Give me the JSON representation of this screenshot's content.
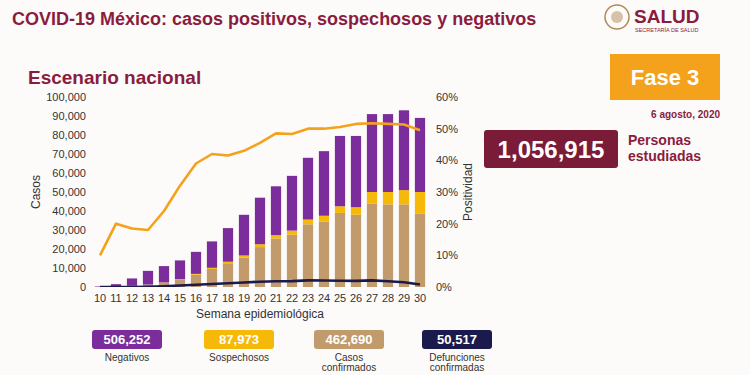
{
  "header": {
    "logo": "SALUD",
    "logo_subtitle": "SECRETARÍA DE SALUD",
    "phase": "Fase 3",
    "date": "6 agosto, 2020",
    "people_studied": "1,056,915",
    "people_studied_label": "Personas estudiadas"
  },
  "chart_data": {
    "type": "bar",
    "stacked": true,
    "title": "COVID-19 México: casos positivos, sospechosos y negativos",
    "subtitle": "Escenario nacional",
    "x_label": "Semana epidemiológica",
    "y_label": "Casos",
    "y2_label": "Positividad",
    "categories": [
      "10",
      "11",
      "12",
      "13",
      "14",
      "15",
      "16",
      "17",
      "18",
      "19",
      "20",
      "21",
      "22",
      "23",
      "24",
      "25",
      "26",
      "27",
      "28",
      "29",
      "30"
    ],
    "ylim": [
      0,
      100000
    ],
    "yticks": [
      0,
      {
        "value": 10000,
        "label": "10,000"
      },
      {
        "value": 20000,
        "label": "20,000"
      },
      {
        "value": 30000,
        "label": "30,000"
      },
      {
        "value": 40000,
        "label": "40,000"
      },
      {
        "value": 50000,
        "label": "50,000"
      },
      {
        "value": 60000,
        "label": "60,000"
      },
      {
        "value": 70000,
        "label": "70,000"
      },
      {
        "value": 80000,
        "label": "80,000"
      },
      {
        "value": 90000,
        "label": "90,000"
      },
      {
        "value": 100000,
        "label": "100,000"
      }
    ],
    "y2lim": [
      0,
      60
    ],
    "y2ticks": [
      {
        "value": 0,
        "label": "0%"
      },
      {
        "value": 10,
        "label": "10%"
      },
      {
        "value": 20,
        "label": "20%"
      },
      {
        "value": 30,
        "label": "30%"
      },
      {
        "value": 40,
        "label": "40%"
      },
      {
        "value": 50,
        "label": "50%"
      },
      {
        "value": 60,
        "label": "60%"
      }
    ],
    "grid": false,
    "series": [
      {
        "name": "Negativos",
        "total": "506,252",
        "color": "#7b2d9c",
        "type": "bar",
        "values": [
          270,
          1300,
          3850,
          7200,
          8600,
          9900,
          11600,
          13900,
          17700,
          21400,
          24500,
          25700,
          28800,
          32500,
          34000,
          37000,
          37500,
          41000,
          41000,
          42000,
          39000
        ]
      },
      {
        "name": "Sospechosos",
        "total": "87,973",
        "color": "#f6b90a",
        "type": "bar",
        "values": [
          0,
          0,
          50,
          100,
          200,
          300,
          400,
          600,
          800,
          1100,
          1500,
          1800,
          2200,
          2500,
          3000,
          3500,
          4000,
          6000,
          6500,
          7500,
          11500
        ]
      },
      {
        "name": "Casos confirmados",
        "total": "462,690",
        "color": "#c29b6c",
        "type": "bar",
        "values": [
          30,
          200,
          600,
          1200,
          2200,
          3800,
          6500,
          9500,
          12500,
          15500,
          21000,
          25500,
          27500,
          33000,
          34500,
          39000,
          38000,
          44000,
          43500,
          43500,
          38500
        ]
      },
      {
        "name": "Defunciones confirmadas",
        "total": "50,517",
        "color": "#1b1a4d",
        "type": "line",
        "values": [
          0,
          5,
          30,
          150,
          400,
          800,
          1200,
          1600,
          2000,
          2400,
          2800,
          3000,
          3100,
          3500,
          3400,
          3300,
          3200,
          3500,
          3000,
          2500,
          1300
        ]
      },
      {
        "color": "#f4a21c",
        "type": "line",
        "axis": "y2",
        "values": [
          10,
          20,
          18.5,
          18,
          24,
          32,
          39,
          42,
          41.5,
          43,
          45.5,
          48.5,
          48.3,
          50,
          50,
          50.5,
          51.5,
          51.7,
          51.5,
          51.3,
          49.5
        ]
      }
    ]
  }
}
